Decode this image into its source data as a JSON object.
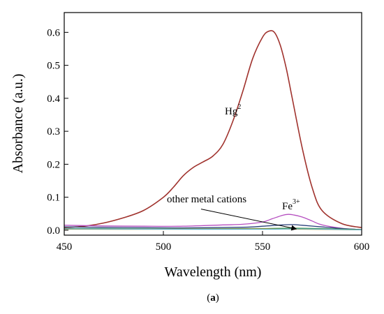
{
  "chart_data": {
    "type": "line",
    "xlabel": "Wavelength (nm)",
    "ylabel": "Absorbance (a.u.)",
    "xlim": [
      450,
      600
    ],
    "ylim": [
      -0.015,
      0.66
    ],
    "x_ticks": [
      450,
      500,
      550,
      600
    ],
    "y_ticks": [
      0.0,
      0.1,
      0.2,
      0.3,
      0.4,
      0.5,
      0.6
    ],
    "y_tick_labels": [
      "0.0",
      "0.1",
      "0.2",
      "0.3",
      "0.4",
      "0.5",
      "0.6"
    ],
    "grid": false,
    "legend": "none",
    "series": [
      {
        "color": "#a0322d",
        "x": [
          450,
          460,
          470,
          480,
          490,
          500,
          505,
          510,
          515,
          520,
          525,
          530,
          535,
          540,
          545,
          550,
          553,
          556,
          559,
          562,
          565,
          570,
          575,
          580,
          590,
          600
        ],
        "y": [
          0.008,
          0.012,
          0.022,
          0.038,
          0.06,
          0.1,
          0.13,
          0.165,
          0.19,
          0.207,
          0.225,
          0.26,
          0.33,
          0.42,
          0.52,
          0.585,
          0.603,
          0.6,
          0.56,
          0.49,
          0.4,
          0.25,
          0.13,
          0.06,
          0.02,
          0.008
        ]
      },
      {
        "color": "#b54fc0",
        "x": [
          450,
          470,
          490,
          510,
          530,
          540,
          550,
          555,
          560,
          563,
          566,
          570,
          575,
          580,
          590,
          600
        ],
        "y": [
          0.015,
          0.013,
          0.012,
          0.012,
          0.016,
          0.018,
          0.025,
          0.035,
          0.045,
          0.048,
          0.046,
          0.04,
          0.028,
          0.016,
          0.006,
          0.002
        ]
      },
      {
        "color": "#2a3f7a",
        "x": [
          450,
          480,
          510,
          540,
          550,
          560,
          565,
          570,
          580,
          590,
          600
        ],
        "y": [
          0.01,
          0.008,
          0.007,
          0.009,
          0.012,
          0.016,
          0.017,
          0.015,
          0.01,
          0.005,
          0.002
        ]
      },
      {
        "color": "#3a8a3a",
        "x": [
          450,
          500,
          550,
          570,
          600
        ],
        "y": [
          0.005,
          0.004,
          0.005,
          0.006,
          0.002
        ]
      },
      {
        "color": "#d89a2a",
        "x": [
          450,
          500,
          550,
          570,
          600
        ],
        "y": [
          0.003,
          0.003,
          0.004,
          0.003,
          0.001
        ]
      },
      {
        "color": "#5fb0c8",
        "x": [
          450,
          500,
          550,
          570,
          600
        ],
        "y": [
          0.004,
          0.003,
          0.003,
          0.004,
          0.001
        ]
      }
    ],
    "annotations": [
      {
        "text": "Hg",
        "sup": "2",
        "x": 521,
        "y": 0.455
      },
      {
        "text": "Fe",
        "sup": "3+",
        "x": 561,
        "y": 0.075
      },
      {
        "text": "other metal cations",
        "x": 486,
        "y": 0.078,
        "arrow_from": [
          519,
          0.064
        ],
        "arrow_to": [
          567,
          0.004
        ]
      }
    ],
    "caption": {
      "open": "(",
      "label": "a",
      "close": ")"
    }
  }
}
